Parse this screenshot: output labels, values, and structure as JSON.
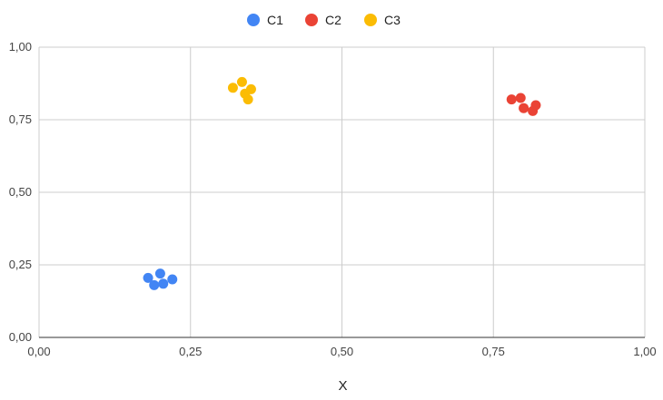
{
  "chart_data": {
    "type": "scatter",
    "xlabel": "X",
    "ylabel": "",
    "xlim": [
      0,
      1
    ],
    "ylim": [
      0,
      1
    ],
    "x_ticks": [
      "0,00",
      "0,25",
      "0,50",
      "0,75",
      "1,00"
    ],
    "y_ticks": [
      "0,00",
      "0,25",
      "0,50",
      "0,75",
      "1,00"
    ],
    "grid": true,
    "legend_position": "top-center",
    "series": [
      {
        "name": "C1",
        "color": "#4285F4",
        "points": [
          {
            "x": 0.18,
            "y": 0.205
          },
          {
            "x": 0.2,
            "y": 0.22
          },
          {
            "x": 0.19,
            "y": 0.18
          },
          {
            "x": 0.205,
            "y": 0.185
          },
          {
            "x": 0.22,
            "y": 0.2
          }
        ]
      },
      {
        "name": "C2",
        "color": "#EA4335",
        "points": [
          {
            "x": 0.78,
            "y": 0.82
          },
          {
            "x": 0.795,
            "y": 0.825
          },
          {
            "x": 0.8,
            "y": 0.79
          },
          {
            "x": 0.815,
            "y": 0.78
          },
          {
            "x": 0.82,
            "y": 0.8
          }
        ]
      },
      {
        "name": "C3",
        "color": "#FBBC04",
        "points": [
          {
            "x": 0.32,
            "y": 0.86
          },
          {
            "x": 0.335,
            "y": 0.88
          },
          {
            "x": 0.34,
            "y": 0.84
          },
          {
            "x": 0.345,
            "y": 0.82
          },
          {
            "x": 0.35,
            "y": 0.855
          }
        ]
      }
    ]
  }
}
